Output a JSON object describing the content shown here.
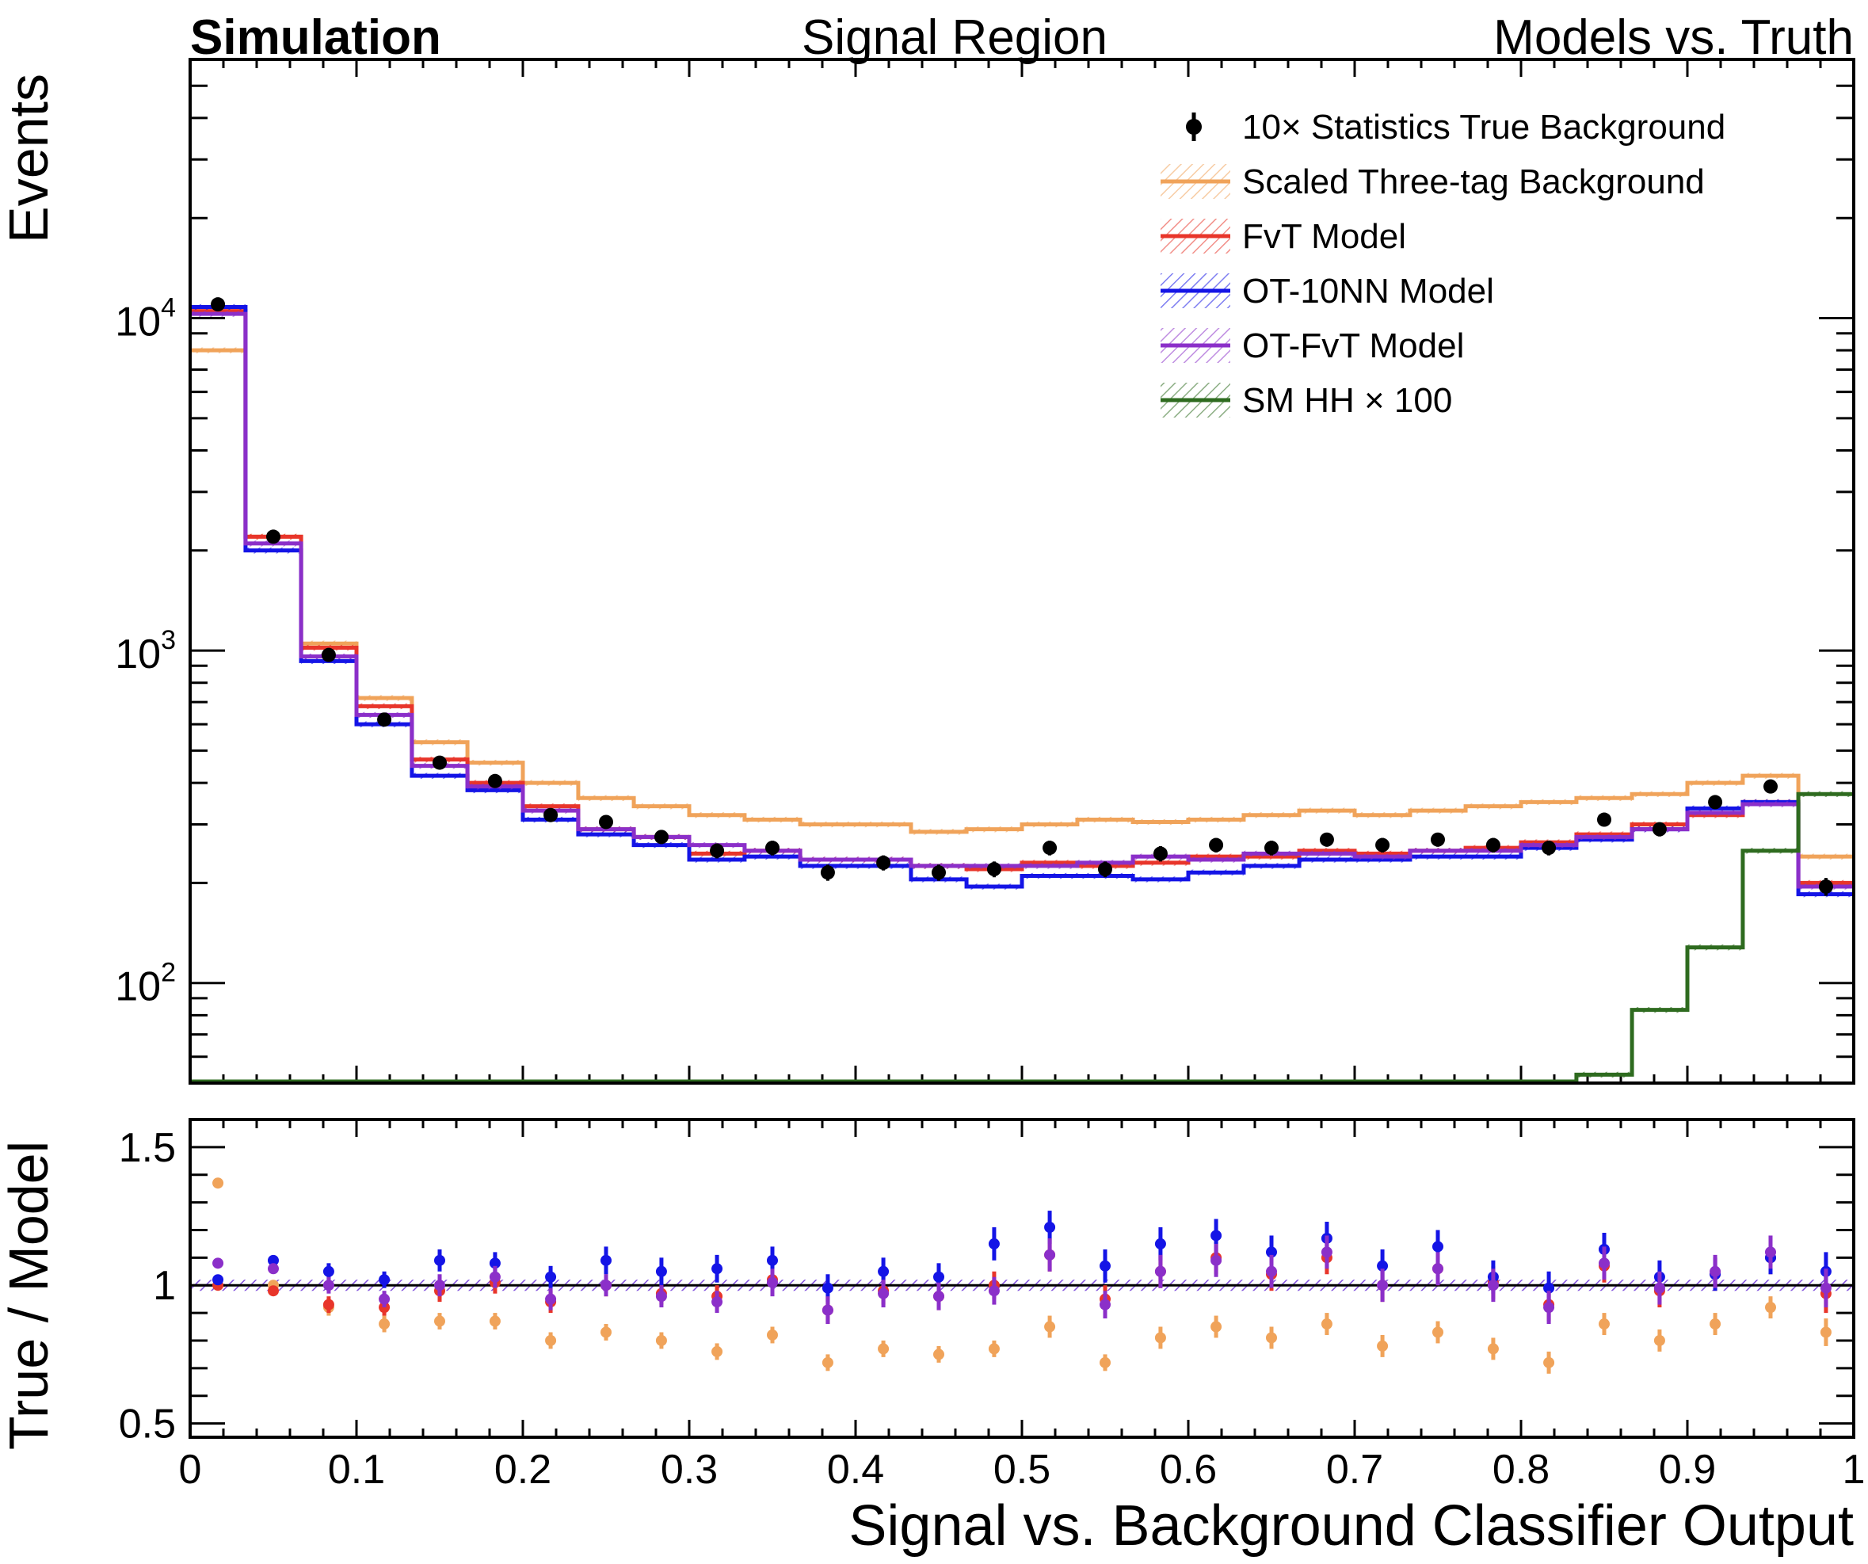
{
  "header": {
    "left": "Simulation",
    "center": "Signal Region",
    "right": "Models vs. Truth"
  },
  "colors": {
    "truth": "#000000",
    "three_tag": "#f0a35a",
    "fvt": "#e8352a",
    "ot10nn": "#1414e6",
    "otfvt": "#8b2fc9",
    "smhh": "#2e6b1f"
  },
  "chart_data": [
    {
      "type": "histogram",
      "panel": "main",
      "ylabel": "Events",
      "yscale": "log",
      "ylim": [
        50,
        60000
      ],
      "xlim": [
        0,
        1
      ],
      "y_tick_labels": [
        {
          "value": 100,
          "base": "10",
          "exp": "2"
        },
        {
          "value": 1000,
          "base": "10",
          "exp": "3"
        },
        {
          "value": 10000,
          "base": "10",
          "exp": "4"
        }
      ],
      "bin_edges": [
        0,
        0.0333,
        0.0667,
        0.1,
        0.1333,
        0.1667,
        0.2,
        0.2333,
        0.2667,
        0.3,
        0.3333,
        0.3667,
        0.4,
        0.4333,
        0.4667,
        0.5,
        0.5333,
        0.5667,
        0.6,
        0.6333,
        0.6667,
        0.7,
        0.7333,
        0.7667,
        0.8,
        0.8333,
        0.8667,
        0.9,
        0.9333,
        0.9667,
        1.0
      ],
      "legend": [
        {
          "label": "10× Statistics True Background",
          "key": "truth",
          "style": "marker"
        },
        {
          "label": "Scaled Three-tag Background",
          "key": "three_tag",
          "style": "line-hatch"
        },
        {
          "label": "FvT Model",
          "key": "fvt",
          "style": "line-hatch"
        },
        {
          "label": "OT-10NN Model",
          "key": "ot10nn",
          "style": "line-hatch"
        },
        {
          "label": "OT-FvT Model",
          "key": "otfvt",
          "style": "line-hatch"
        },
        {
          "label": "SM HH × 100",
          "key": "smhh",
          "style": "line-hatch"
        }
      ],
      "legend_position": "top-right",
      "series": [
        {
          "name": "Scaled Three-tag Background",
          "key": "three_tag",
          "values": [
            8000,
            2200,
            1050,
            720,
            530,
            460,
            400,
            360,
            340,
            320,
            310,
            300,
            300,
            285,
            290,
            300,
            310,
            305,
            310,
            320,
            330,
            320,
            330,
            340,
            350,
            360,
            370,
            400,
            420,
            240
          ]
        },
        {
          "name": "FvT Model",
          "key": "fvt",
          "values": [
            10500,
            2200,
            1020,
            680,
            470,
            400,
            340,
            290,
            275,
            245,
            250,
            235,
            235,
            225,
            220,
            230,
            225,
            230,
            240,
            240,
            250,
            245,
            250,
            255,
            265,
            280,
            300,
            320,
            350,
            200
          ]
        },
        {
          "name": "OT-10NN Model",
          "key": "ot10nn",
          "values": [
            10800,
            2000,
            930,
            600,
            420,
            380,
            310,
            280,
            260,
            235,
            240,
            225,
            225,
            205,
            195,
            210,
            210,
            205,
            215,
            225,
            235,
            235,
            240,
            240,
            255,
            270,
            290,
            335,
            350,
            185
          ]
        },
        {
          "name": "OT-FvT Model",
          "key": "otfvt",
          "values": [
            10300,
            2100,
            960,
            640,
            450,
            390,
            330,
            290,
            275,
            260,
            250,
            235,
            235,
            225,
            225,
            225,
            230,
            240,
            235,
            245,
            245,
            240,
            250,
            250,
            260,
            275,
            290,
            325,
            345,
            195
          ]
        },
        {
          "name": "SM HH × 100",
          "key": "smhh",
          "values": [
            0,
            0,
            0,
            0,
            0,
            0,
            0,
            0,
            0,
            0,
            0,
            0,
            0,
            0,
            0,
            0,
            0,
            0,
            0,
            0,
            0,
            0,
            0,
            0,
            0,
            53,
            83,
            128,
            250,
            370
          ]
        },
        {
          "name": "10× Statistics True Background",
          "key": "truth",
          "x": [
            0.0167,
            0.05,
            0.0833,
            0.1167,
            0.15,
            0.1833,
            0.2167,
            0.25,
            0.2833,
            0.3167,
            0.35,
            0.3833,
            0.4167,
            0.45,
            0.4833,
            0.5167,
            0.55,
            0.5833,
            0.6167,
            0.65,
            0.6833,
            0.7167,
            0.75,
            0.7833,
            0.8167,
            0.85,
            0.8833,
            0.9167,
            0.95,
            0.9833
          ],
          "values": [
            11000,
            2200,
            970,
            620,
            460,
            405,
            320,
            305,
            275,
            250,
            255,
            215,
            230,
            215,
            220,
            255,
            220,
            245,
            260,
            255,
            270,
            260,
            270,
            260,
            255,
            310,
            290,
            350,
            390,
            195
          ],
          "errors": [
            200,
            50,
            30,
            20,
            18,
            16,
            14,
            14,
            13,
            13,
            13,
            12,
            12,
            12,
            12,
            13,
            12,
            13,
            13,
            13,
            13,
            13,
            13,
            13,
            13,
            14,
            14,
            15,
            16,
            12
          ]
        }
      ]
    },
    {
      "type": "scatter",
      "panel": "ratio",
      "ylabel": "True / Model",
      "xlabel": "Signal vs. Background Classifier Output",
      "ylim": [
        0.45,
        1.6
      ],
      "xlim": [
        0,
        1
      ],
      "y_tick_labels": [
        "0.5",
        "1",
        "1.5"
      ],
      "x_tick_labels": [
        "0",
        "0.1",
        "0.2",
        "0.3",
        "0.4",
        "0.5",
        "0.6",
        "0.7",
        "0.8",
        "0.9",
        "1"
      ],
      "reference_line": 1.0,
      "x": [
        0.0167,
        0.05,
        0.0833,
        0.1167,
        0.15,
        0.1833,
        0.2167,
        0.25,
        0.2833,
        0.3167,
        0.35,
        0.3833,
        0.4167,
        0.45,
        0.4833,
        0.5167,
        0.55,
        0.5833,
        0.6167,
        0.65,
        0.6833,
        0.7167,
        0.75,
        0.7833,
        0.8167,
        0.85,
        0.8833,
        0.9167,
        0.95,
        0.9833
      ],
      "series": [
        {
          "name": "Scaled Three-tag Background",
          "key": "three_tag",
          "values": [
            1.37,
            1.0,
            0.92,
            0.86,
            0.87,
            0.87,
            0.8,
            0.83,
            0.8,
            0.76,
            0.82,
            0.72,
            0.77,
            0.75,
            0.77,
            0.85,
            0.72,
            0.81,
            0.85,
            0.81,
            0.86,
            0.78,
            0.83,
            0.77,
            0.72,
            0.86,
            0.8,
            0.86,
            0.92,
            0.83
          ],
          "errors": [
            0,
            0,
            0.03,
            0.03,
            0.03,
            0.03,
            0.03,
            0.03,
            0.03,
            0.03,
            0.03,
            0.03,
            0.03,
            0.03,
            0.03,
            0.04,
            0.03,
            0.04,
            0.04,
            0.04,
            0.04,
            0.04,
            0.04,
            0.04,
            0.04,
            0.04,
            0.04,
            0.04,
            0.04,
            0.05
          ]
        },
        {
          "name": "FvT Model",
          "key": "fvt",
          "values": [
            1.0,
            0.98,
            0.93,
            0.92,
            0.98,
            1.01,
            0.94,
            1.0,
            0.97,
            0.96,
            1.02,
            0.91,
            0.98,
            0.96,
            1.0,
            1.11,
            0.95,
            1.05,
            1.1,
            1.04,
            1.1,
            1.0,
            1.06,
            1.01,
            0.93,
            1.07,
            0.98,
            1.04,
            1.1,
            0.97
          ],
          "errors": [
            0,
            0,
            0.03,
            0.03,
            0.04,
            0.04,
            0.04,
            0.04,
            0.04,
            0.04,
            0.05,
            0.05,
            0.05,
            0.05,
            0.05,
            0.06,
            0.05,
            0.06,
            0.06,
            0.06,
            0.06,
            0.06,
            0.06,
            0.06,
            0.06,
            0.06,
            0.06,
            0.06,
            0.06,
            0.07
          ]
        },
        {
          "name": "OT-10NN Model",
          "key": "ot10nn",
          "values": [
            1.02,
            1.09,
            1.05,
            1.02,
            1.09,
            1.08,
            1.03,
            1.09,
            1.05,
            1.06,
            1.09,
            0.99,
            1.05,
            1.03,
            1.15,
            1.21,
            1.07,
            1.15,
            1.18,
            1.12,
            1.17,
            1.07,
            1.14,
            1.03,
            0.99,
            1.13,
            1.03,
            1.04,
            1.1,
            1.05
          ],
          "errors": [
            0,
            0,
            0.03,
            0.03,
            0.04,
            0.04,
            0.04,
            0.05,
            0.05,
            0.05,
            0.05,
            0.05,
            0.05,
            0.05,
            0.06,
            0.06,
            0.06,
            0.06,
            0.06,
            0.06,
            0.06,
            0.06,
            0.06,
            0.06,
            0.06,
            0.06,
            0.06,
            0.06,
            0.06,
            0.07
          ]
        },
        {
          "name": "OT-FvT Model",
          "key": "otfvt",
          "values": [
            1.08,
            1.06,
            1.0,
            0.95,
            1.0,
            1.03,
            0.95,
            1.0,
            0.96,
            0.94,
            1.01,
            0.91,
            0.97,
            0.96,
            0.98,
            1.11,
            0.93,
            1.05,
            1.09,
            1.05,
            1.12,
            1.0,
            1.06,
            1.0,
            0.92,
            1.08,
            0.99,
            1.05,
            1.12,
            0.99
          ],
          "errors": [
            0,
            0,
            0.03,
            0.03,
            0.04,
            0.04,
            0.04,
            0.04,
            0.04,
            0.04,
            0.05,
            0.05,
            0.05,
            0.05,
            0.05,
            0.06,
            0.05,
            0.06,
            0.06,
            0.06,
            0.06,
            0.06,
            0.06,
            0.06,
            0.06,
            0.06,
            0.06,
            0.06,
            0.06,
            0.07
          ]
        }
      ]
    }
  ]
}
